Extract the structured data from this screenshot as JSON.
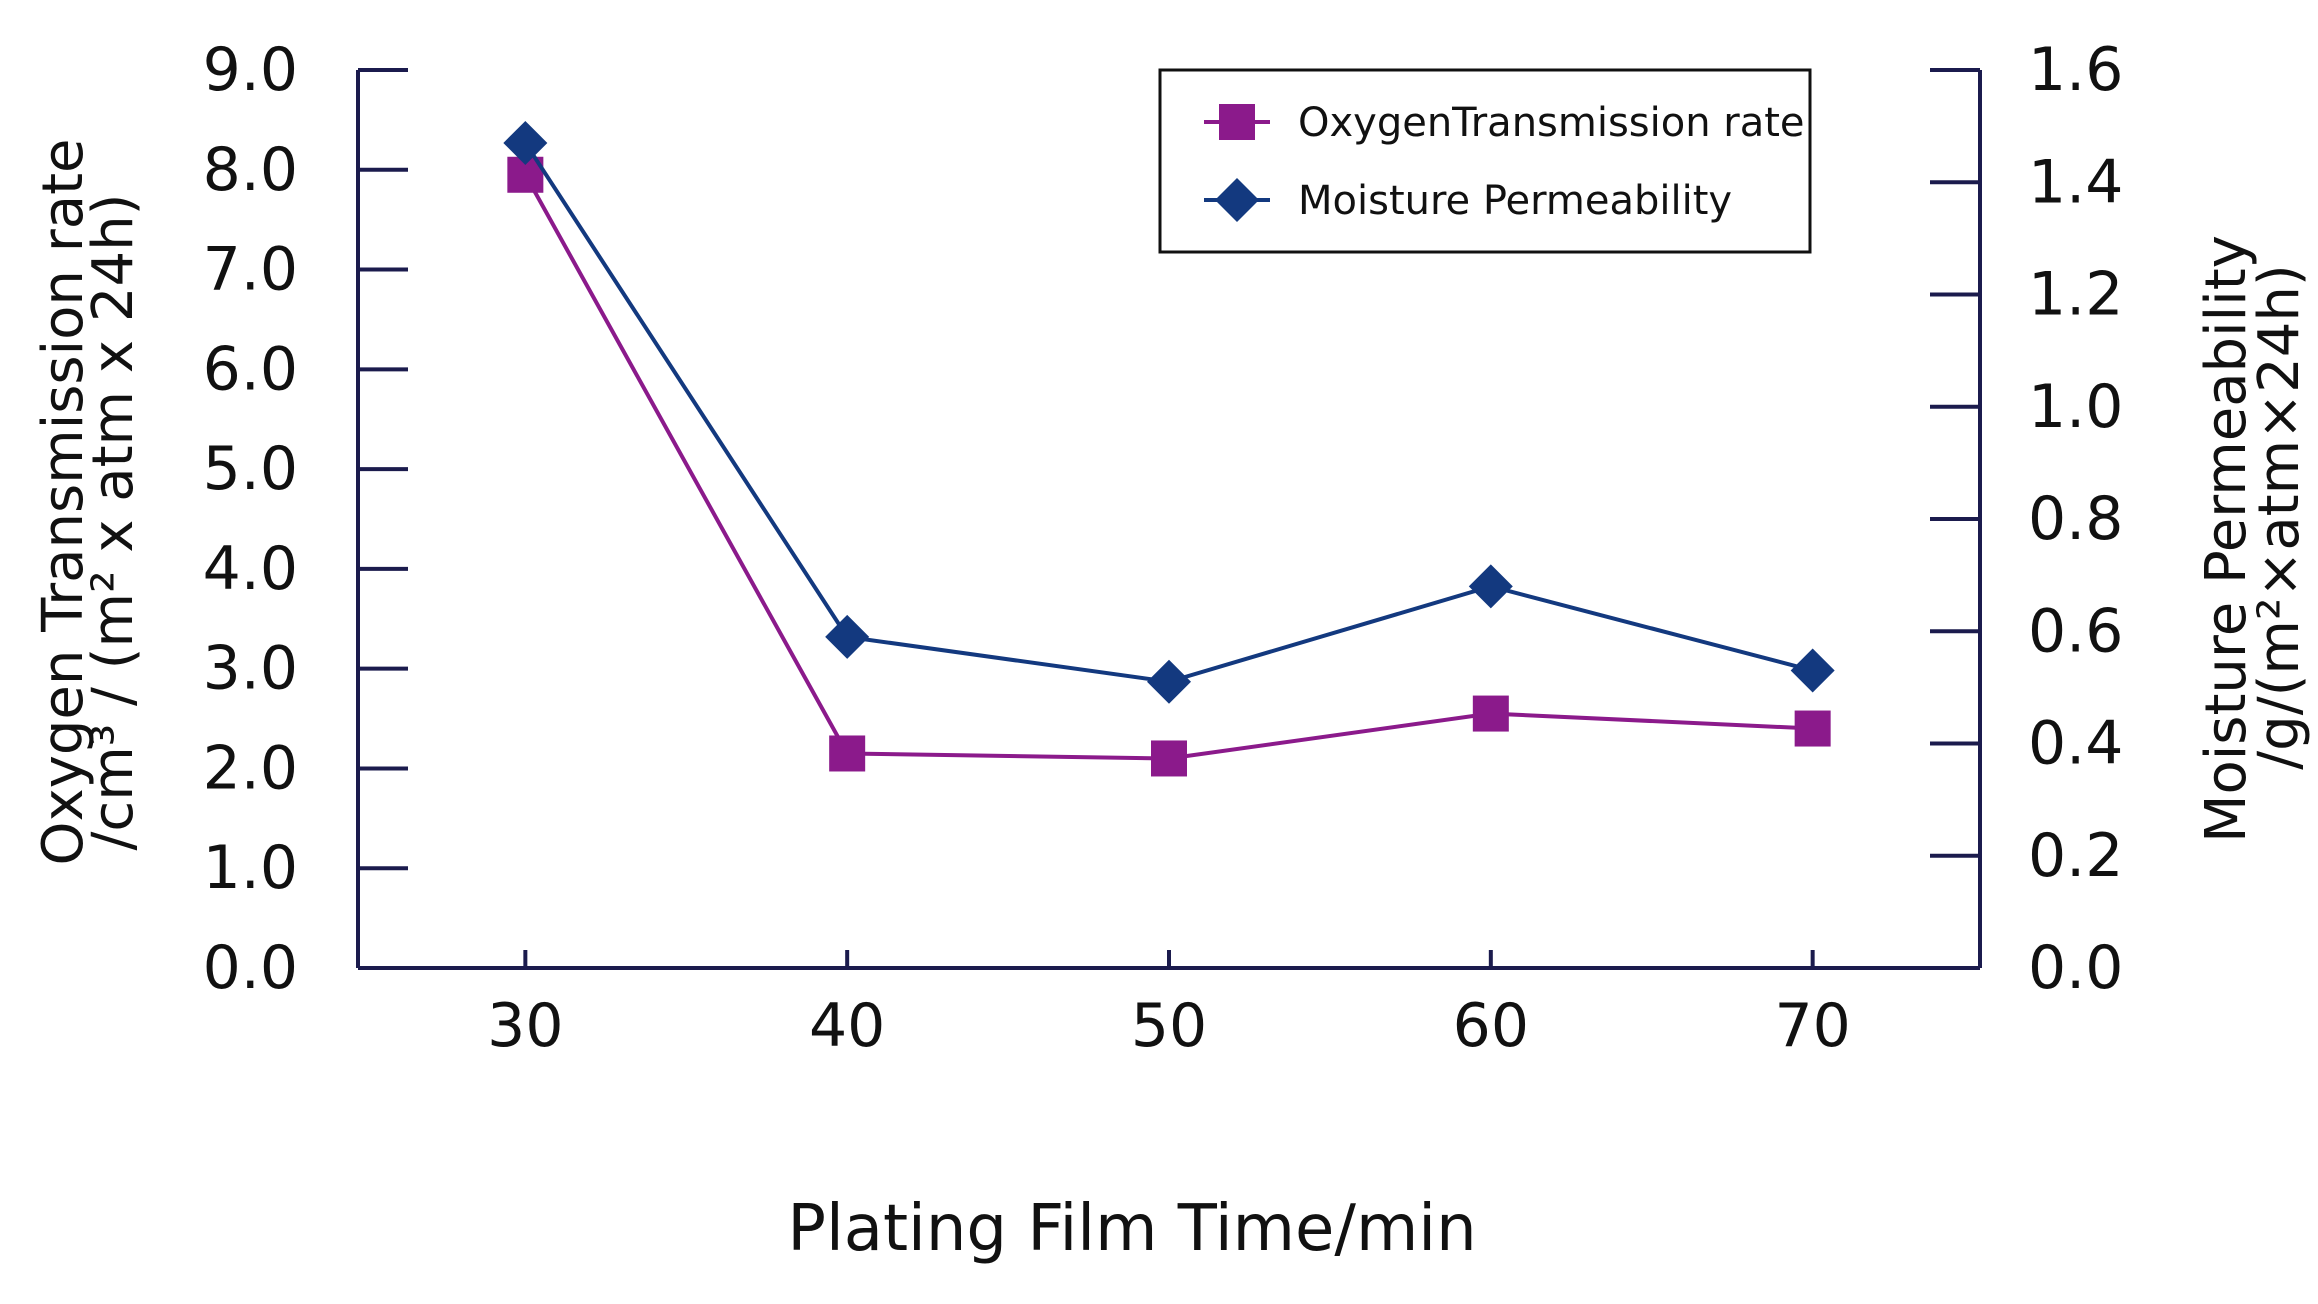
{
  "chart_data": {
    "type": "line",
    "title": "",
    "xlabel": "Plating Film Time/min",
    "ylabel": "Oxygen  Transmission  rate",
    "ylabel_unit": "/cm³ / (m² x atm x 24h)",
    "y2label": "Moisture  Permeability",
    "y2label_unit": "/g/(m²×atm×24h)",
    "x": [
      30,
      40,
      50,
      60,
      70
    ],
    "x_tick_labels": [
      "30",
      "40",
      "50",
      "60",
      "70"
    ],
    "xlim": [
      24.8,
      75.2
    ],
    "ylim": [
      0,
      9.0
    ],
    "y_ticks": [
      0,
      1,
      2,
      3,
      4,
      5,
      6,
      7,
      8,
      9
    ],
    "y_tick_labels": [
      "0.0",
      "1.0",
      "2.0",
      "3.0",
      "4.0",
      "5.0",
      "6.0",
      "7.0",
      "8.0",
      "9.0"
    ],
    "y2lim": [
      0,
      1.6
    ],
    "y2_ticks": [
      0,
      0.2,
      0.4,
      0.6,
      0.8,
      1.0,
      1.2,
      1.4,
      1.6
    ],
    "y2_tick_labels": [
      "0.0",
      "0.2",
      "0.4",
      "0.6",
      "0.8",
      "1.0",
      "1.2",
      "1.4",
      "1.6"
    ],
    "grid": false,
    "legend_position": "top-right",
    "series": [
      {
        "name": "OxygenTransmission rate",
        "axis": "left",
        "marker": "square",
        "color": "#8b1a8b",
        "values": [
          7.95,
          2.15,
          2.1,
          2.55,
          2.4
        ]
      },
      {
        "name": "Moisture Permeability",
        "axis": "right",
        "marker": "diamond",
        "color": "#13397f",
        "values": [
          1.47,
          0.59,
          0.51,
          0.68,
          0.53
        ]
      }
    ],
    "axis_color": "#1b1b4d"
  }
}
